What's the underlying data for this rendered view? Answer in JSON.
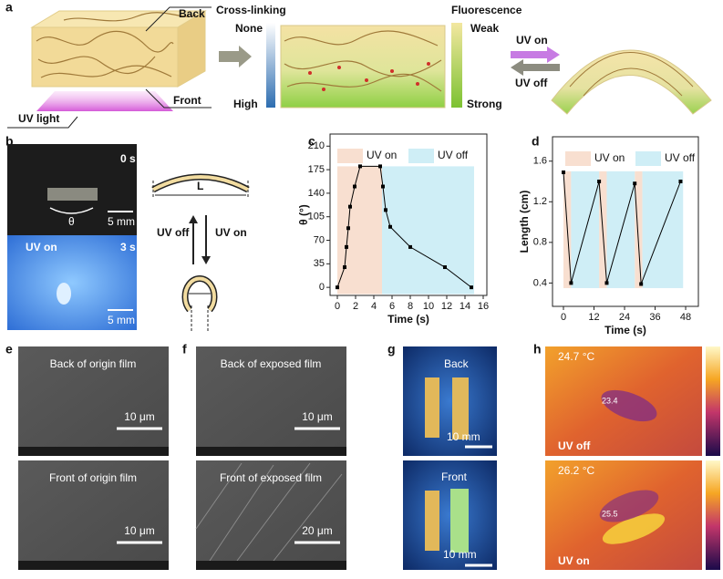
{
  "panels": {
    "a": {
      "label": "a",
      "back": "Back",
      "front": "Front",
      "uv_light": "UV light",
      "crosslinking": "Cross-linking",
      "none": "None",
      "high": "High",
      "fluorescence": "Fluorescence",
      "weak": "Weak",
      "strong": "Strong",
      "uv_on": "UV on",
      "uv_off": "UV off"
    },
    "b": {
      "label": "b",
      "time_0": "0 s",
      "theta": "θ",
      "scale_top": "5 mm",
      "uv_on_photo": "UV on",
      "time_3": "3 s",
      "scale_bottom": "5 mm",
      "length": "L",
      "uv_off": "UV off",
      "uv_on": "UV on"
    },
    "e": {
      "label": "e",
      "top": "Back of origin film",
      "top_scale": "10 μm",
      "bottom": "Front of origin film",
      "bottom_scale": "10 μm"
    },
    "f": {
      "label": "f",
      "top": "Back of exposed film",
      "top_scale": "10 μm",
      "bottom": "Front of exposed film",
      "bottom_scale": "20 μm"
    },
    "g": {
      "label": "g",
      "top": "Back",
      "top_scale": "10 mm",
      "bottom": "Front",
      "bottom_scale": "10 mm"
    },
    "h": {
      "label": "h",
      "top_temp": "24.7 °C",
      "top_spot": "23.4",
      "top_state": "UV off",
      "bottom_temp": "26.2 °C",
      "bottom_spot": "25.5",
      "bottom_state": "UV on"
    }
  },
  "chart_data": [
    {
      "panel": "c",
      "type": "line",
      "xlabel": "Time (s)",
      "ylabel": "θ (°)",
      "xlim": [
        -0.8,
        16.4
      ],
      "ylim": [
        -12,
        228
      ],
      "xticks": [
        0,
        2,
        4,
        6,
        8,
        10,
        12,
        14,
        16
      ],
      "yticks": [
        0,
        35,
        70,
        105,
        140,
        175,
        210
      ],
      "regions": [
        {
          "name": "UV on",
          "color": "#f8dfd0",
          "y": [
            -10,
            180
          ],
          "spans": [
            [
              0,
              4.9
            ]
          ]
        },
        {
          "name": "UV off",
          "color": "#cfeef6",
          "y": [
            -10,
            180
          ],
          "spans": [
            [
              4.9,
              15
            ]
          ]
        }
      ],
      "series": [
        {
          "color": "#000000",
          "x": [
            0,
            0.8,
            1,
            1.2,
            1.4,
            1.9,
            2.5,
            4.7,
            5,
            5.3,
            5.8,
            8,
            11.8,
            14.7
          ],
          "values": [
            0,
            30,
            60,
            88,
            120,
            150,
            180,
            180,
            150,
            115,
            90,
            60,
            30,
            0
          ]
        }
      ]
    },
    {
      "panel": "d",
      "type": "line",
      "xlabel": "Time (s)",
      "ylabel": "Length (cm)",
      "xlim": [
        -4.3,
        53
      ],
      "ylim": [
        0.17,
        1.84
      ],
      "xticks": [
        0,
        12,
        24,
        36,
        48
      ],
      "yticks": [
        0.4,
        0.8,
        1.2,
        1.6
      ],
      "regions": [
        {
          "name": "UV on",
          "color": "#f8dfd0",
          "y": [
            0.35,
            1.5
          ],
          "spans": [
            [
              0,
              3
            ],
            [
              14,
              17
            ],
            [
              28,
              31
            ]
          ]
        },
        {
          "name": "UV off",
          "color": "#cfeef6",
          "y": [
            0.35,
            1.5
          ],
          "spans": [
            [
              3,
              14
            ],
            [
              17,
              28
            ],
            [
              31,
              47
            ]
          ]
        }
      ],
      "series": [
        {
          "color": "#000000",
          "x": [
            0,
            3,
            14,
            17,
            28,
            30.5,
            46
          ],
          "values": [
            1.49,
            0.4,
            1.4,
            0.4,
            1.38,
            0.39,
            1.4
          ]
        }
      ]
    }
  ]
}
